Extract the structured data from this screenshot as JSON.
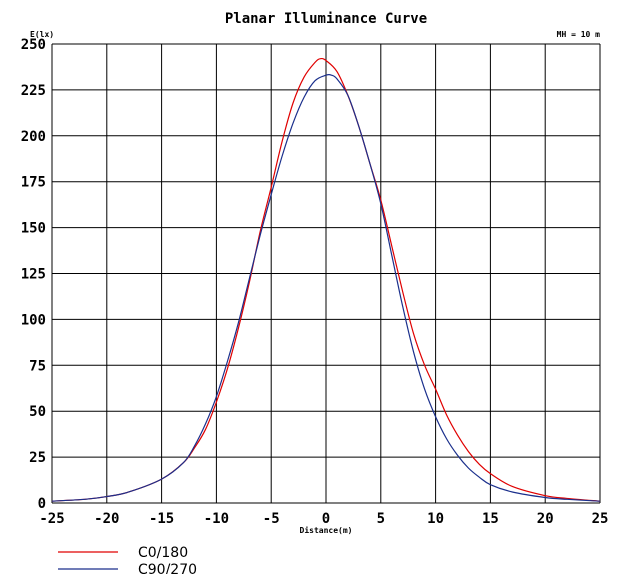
{
  "chart_data": {
    "type": "line",
    "title": "Planar Illuminance Curve",
    "ylabel": "E(lx)",
    "xlabel": "Distance(m)",
    "annotation": "MH = 10 m",
    "xlim": [
      -25,
      25
    ],
    "ylim": [
      0,
      250
    ],
    "xticks": [
      -25,
      -20,
      -15,
      -10,
      -5,
      0,
      5,
      10,
      15,
      20,
      25
    ],
    "yticks": [
      0,
      25,
      50,
      75,
      100,
      125,
      150,
      175,
      200,
      225,
      250
    ],
    "grid": true,
    "legend_position": "bottom-left",
    "series": [
      {
        "name": "C0/180",
        "color": "#e00000",
        "points": [
          [
            -25,
            1
          ],
          [
            -22,
            2
          ],
          [
            -20,
            3.5
          ],
          [
            -18,
            6
          ],
          [
            -15,
            13
          ],
          [
            -13,
            22
          ],
          [
            -12,
            30
          ],
          [
            -11,
            40
          ],
          [
            -10,
            55
          ],
          [
            -9,
            73
          ],
          [
            -8,
            95
          ],
          [
            -7,
            120
          ],
          [
            -6,
            148
          ],
          [
            -5,
            172
          ],
          [
            -4,
            197
          ],
          [
            -3,
            218
          ],
          [
            -2,
            232
          ],
          [
            -1,
            240
          ],
          [
            -0.5,
            242
          ],
          [
            0,
            241
          ],
          [
            1,
            235
          ],
          [
            2,
            222
          ],
          [
            3,
            205
          ],
          [
            4,
            185
          ],
          [
            5,
            165
          ],
          [
            6,
            140
          ],
          [
            7,
            115
          ],
          [
            8,
            92
          ],
          [
            9,
            75
          ],
          [
            10,
            62
          ],
          [
            11,
            48
          ],
          [
            12,
            37
          ],
          [
            13,
            28
          ],
          [
            14,
            21
          ],
          [
            15,
            16
          ],
          [
            17,
            9
          ],
          [
            20,
            4
          ],
          [
            22,
            2.5
          ],
          [
            25,
            1
          ]
        ]
      },
      {
        "name": "C90/270",
        "color": "#1a2f8c",
        "points": [
          [
            -25,
            1
          ],
          [
            -22,
            2
          ],
          [
            -20,
            3.5
          ],
          [
            -18,
            6
          ],
          [
            -15,
            13
          ],
          [
            -13,
            22
          ],
          [
            -12,
            31
          ],
          [
            -11,
            43
          ],
          [
            -10,
            58
          ],
          [
            -9,
            77
          ],
          [
            -8,
            98
          ],
          [
            -7,
            122
          ],
          [
            -6,
            146
          ],
          [
            -5,
            168
          ],
          [
            -4,
            189
          ],
          [
            -3,
            207
          ],
          [
            -2,
            221
          ],
          [
            -1,
            230
          ],
          [
            0,
            233
          ],
          [
            0.5,
            233
          ],
          [
            1,
            231
          ],
          [
            2,
            222
          ],
          [
            3,
            205
          ],
          [
            4,
            185
          ],
          [
            5,
            163
          ],
          [
            6,
            135
          ],
          [
            7,
            107
          ],
          [
            8,
            82
          ],
          [
            9,
            62
          ],
          [
            10,
            47
          ],
          [
            11,
            35
          ],
          [
            12,
            26
          ],
          [
            13,
            19
          ],
          [
            14,
            14
          ],
          [
            15,
            10
          ],
          [
            17,
            6
          ],
          [
            20,
            3
          ],
          [
            22,
            2
          ],
          [
            25,
            1
          ]
        ]
      }
    ]
  }
}
